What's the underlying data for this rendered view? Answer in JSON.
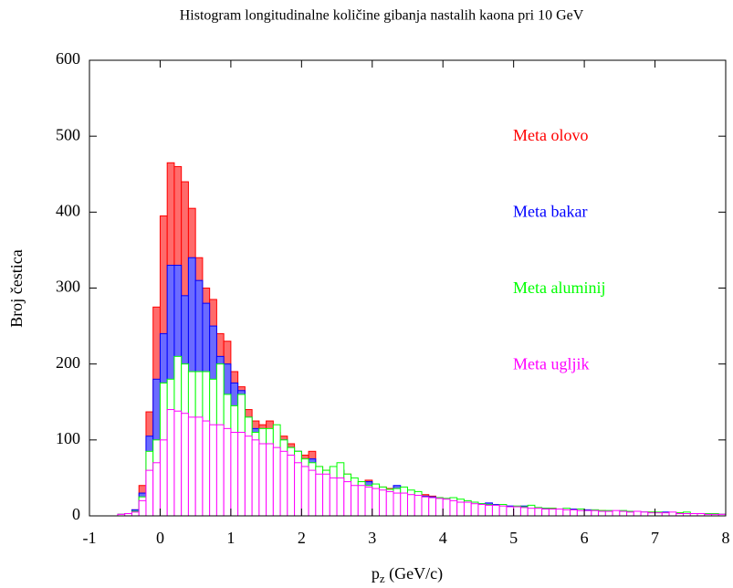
{
  "chart_data": {
    "type": "histogram",
    "title": "Histogram longitudinalne količine gibanja nastalih kaona pri 10 GeV",
    "xlabel": [
      "p",
      "z",
      " (GeV/c)"
    ],
    "ylabel": "Broj čestica",
    "bins": [
      -1,
      -0.9,
      -0.8,
      -0.7,
      -0.6,
      -0.5,
      -0.4,
      -0.3,
      -0.2,
      -0.1,
      0,
      0.1,
      0.2,
      0.3,
      0.4,
      0.5,
      0.6,
      0.7,
      0.8,
      0.9,
      1,
      1.1,
      1.2,
      1.3,
      1.4,
      1.5,
      1.6,
      1.7,
      1.8,
      1.9,
      2,
      2.1,
      2.2,
      2.3,
      2.4,
      2.5,
      2.6,
      2.7,
      2.8,
      2.9,
      3,
      3.1,
      3.2,
      3.3,
      3.4,
      3.5,
      3.6,
      3.7,
      3.8,
      3.9,
      4,
      4.1,
      4.2,
      4.3,
      4.4,
      4.5,
      4.6,
      4.7,
      4.8,
      4.9,
      5,
      5.1,
      5.2,
      5.3,
      5.4,
      5.5,
      5.6,
      5.7,
      5.8,
      5.9,
      6,
      6.1,
      6.2,
      6.3,
      6.4,
      6.5,
      6.6,
      6.7,
      6.8,
      6.9,
      7,
      7.1,
      7.2,
      7.3,
      7.4,
      7.5,
      7.6,
      7.7,
      7.8,
      7.9,
      8
    ],
    "series": [
      {
        "name": "Meta olovo",
        "color": "#ff0000",
        "fill": "#ff6b6b",
        "values": [
          0,
          0,
          0,
          0,
          2,
          3,
          8,
          40,
          137,
          275,
          395,
          465,
          460,
          440,
          405,
          340,
          300,
          285,
          240,
          230,
          190,
          170,
          140,
          125,
          120,
          125,
          110,
          105,
          95,
          85,
          80,
          85,
          65,
          60,
          60,
          60,
          55,
          45,
          45,
          47,
          40,
          38,
          36,
          38,
          34,
          30,
          30,
          28,
          26,
          24,
          22,
          20,
          18,
          18,
          16,
          15,
          16,
          14,
          13,
          12,
          12,
          11,
          10,
          10,
          9,
          10,
          8,
          8,
          7,
          8,
          7,
          6,
          7,
          6,
          5,
          6,
          5,
          5,
          4,
          5,
          4,
          4,
          3,
          4,
          3,
          3,
          2,
          3,
          2,
          2
        ]
      },
      {
        "name": "Meta bakar",
        "color": "#0000ff",
        "fill": "#6b6bff",
        "values": [
          0,
          0,
          0,
          0,
          2,
          3,
          8,
          30,
          105,
          180,
          240,
          330,
          330,
          290,
          340,
          310,
          280,
          250,
          210,
          200,
          175,
          165,
          130,
          115,
          100,
          100,
          100,
          100,
          90,
          85,
          70,
          75,
          60,
          55,
          55,
          60,
          50,
          45,
          40,
          45,
          38,
          35,
          34,
          40,
          32,
          28,
          28,
          26,
          25,
          22,
          22,
          20,
          18,
          17,
          18,
          16,
          17,
          15,
          14,
          13,
          12,
          13,
          11,
          10,
          10,
          9,
          9,
          8,
          9,
          7,
          8,
          7,
          6,
          6,
          6,
          5,
          5,
          5,
          5,
          4,
          4,
          5,
          4,
          3,
          3,
          3,
          3,
          2,
          2,
          2
        ]
      },
      {
        "name": "Meta aluminij",
        "color": "#00ff00",
        "fill": "#ffffff",
        "values": [
          0,
          0,
          0,
          0,
          2,
          3,
          6,
          25,
          85,
          100,
          175,
          180,
          210,
          200,
          190,
          190,
          190,
          180,
          200,
          160,
          145,
          160,
          130,
          110,
          115,
          115,
          120,
          100,
          90,
          85,
          75,
          70,
          65,
          60,
          65,
          70,
          55,
          50,
          45,
          40,
          42,
          38,
          35,
          36,
          38,
          34,
          32,
          25,
          24,
          24,
          23,
          24,
          22,
          20,
          18,
          16,
          15,
          14,
          15,
          12,
          13,
          12,
          14,
          11,
          10,
          10,
          9,
          10,
          8,
          9,
          7,
          8,
          7,
          7,
          6,
          7,
          6,
          5,
          5,
          5,
          5,
          4,
          4,
          4,
          5,
          3,
          3,
          3,
          3,
          2
        ]
      },
      {
        "name": "Meta ugljik",
        "color": "#ff00ff",
        "fill": "#ffffff",
        "values": [
          0,
          0,
          0,
          0,
          2,
          3,
          5,
          20,
          60,
          70,
          100,
          140,
          138,
          135,
          130,
          130,
          125,
          120,
          120,
          115,
          110,
          110,
          105,
          100,
          95,
          95,
          90,
          85,
          80,
          70,
          65,
          60,
          55,
          55,
          50,
          50,
          45,
          40,
          40,
          38,
          36,
          34,
          32,
          30,
          30,
          28,
          27,
          25,
          24,
          23,
          22,
          20,
          18,
          18,
          16,
          15,
          14,
          14,
          13,
          12,
          12,
          11,
          10,
          10,
          9,
          9,
          9,
          8,
          8,
          7,
          7,
          7,
          6,
          6,
          7,
          6,
          5,
          6,
          5,
          4,
          4,
          4,
          5,
          3,
          3,
          3,
          3,
          2,
          2,
          2
        ]
      }
    ],
    "xlim": [
      -1,
      8
    ],
    "xticks": [
      -1,
      0,
      1,
      2,
      3,
      4,
      5,
      6,
      7,
      8
    ],
    "ylim": [
      0,
      600
    ],
    "yticks": [
      0,
      100,
      200,
      300,
      400,
      500,
      600
    ],
    "legend": "top-right",
    "grid": false
  }
}
